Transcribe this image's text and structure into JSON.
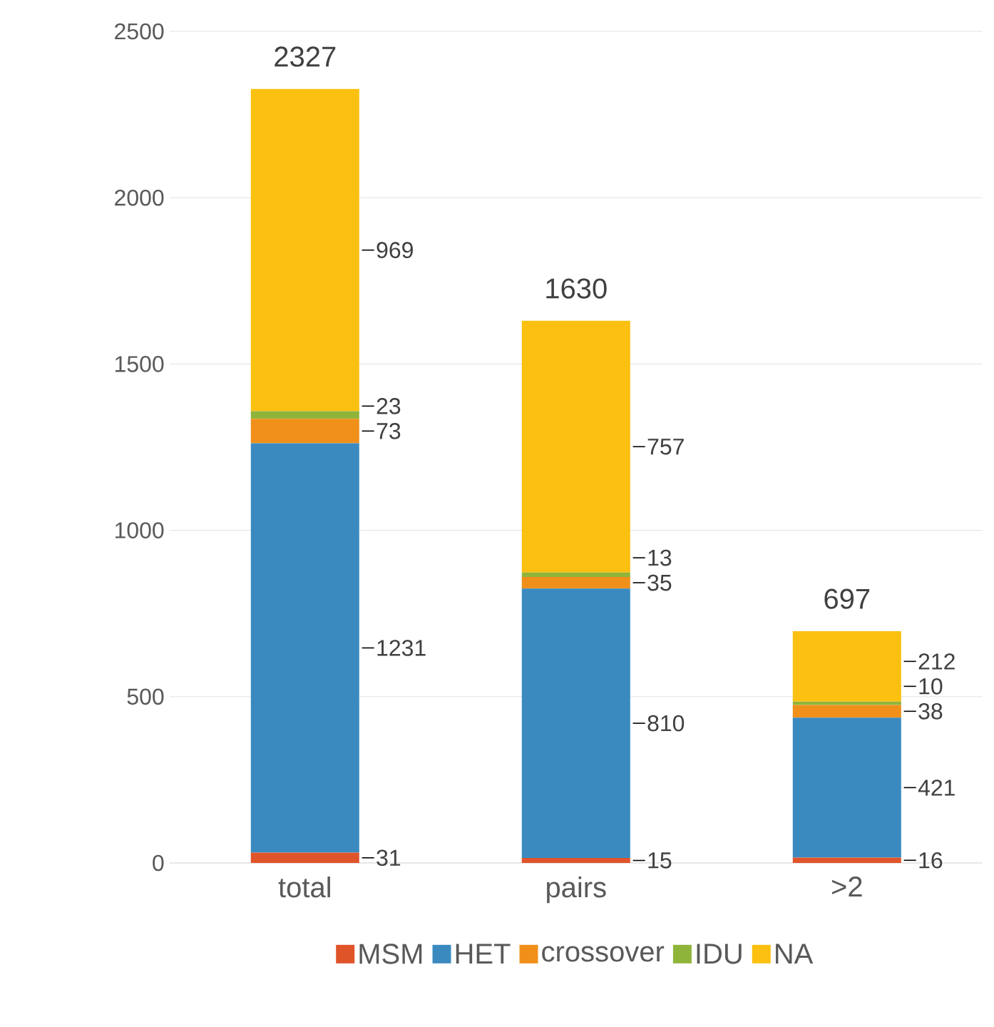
{
  "chart_data": {
    "type": "bar",
    "stacked": true,
    "categories": [
      "total",
      "pairs",
      ">2"
    ],
    "series": [
      {
        "name": "MSM",
        "color": "#e0542a",
        "values": [
          31,
          15,
          16
        ]
      },
      {
        "name": "HET",
        "color": "#3a8ac0",
        "values": [
          1231,
          810,
          421
        ]
      },
      {
        "name": "crossover",
        "color": "#f0901a",
        "values": [
          73,
          35,
          38
        ]
      },
      {
        "name": "IDU",
        "color": "#8fb43a",
        "values": [
          23,
          13,
          10
        ]
      },
      {
        "name": "NA",
        "color": "#fcc010",
        "values": [
          969,
          757,
          212
        ]
      }
    ],
    "totals": [
      "2327",
      "1630",
      "697"
    ],
    "data_labels": true,
    "ylim": [
      0,
      2500
    ],
    "yticks": [
      0,
      500,
      1000,
      1500,
      2000,
      2500
    ],
    "grid": "y",
    "legend": "bottom"
  }
}
